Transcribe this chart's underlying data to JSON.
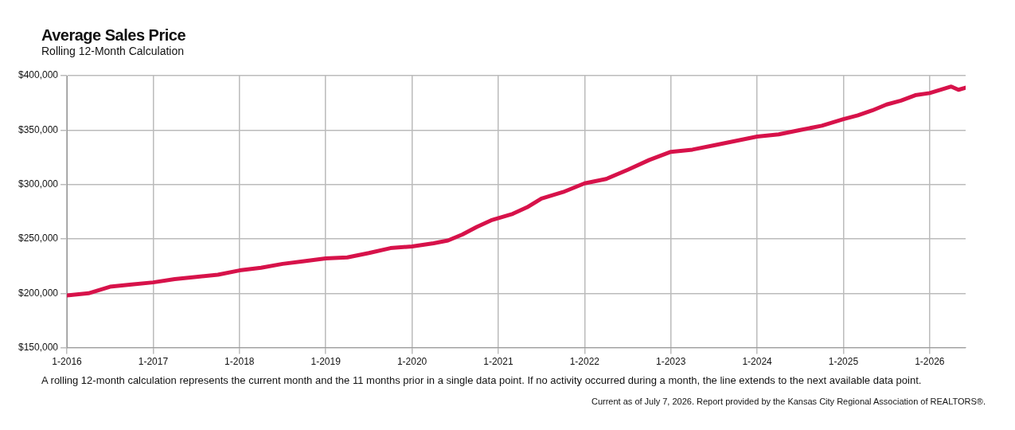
{
  "chart_data": {
    "type": "line",
    "title": "Average Sales Price",
    "subtitle": "Rolling 12-Month Calculation",
    "x": [
      "2016-01",
      "2016-04",
      "2016-07",
      "2016-10",
      "2017-01",
      "2017-04",
      "2017-07",
      "2017-10",
      "2018-01",
      "2018-04",
      "2018-07",
      "2018-10",
      "2019-01",
      "2019-04",
      "2019-07",
      "2019-10",
      "2020-01",
      "2020-04",
      "2020-06",
      "2020-08",
      "2020-10",
      "2020-12",
      "2021-03",
      "2021-05",
      "2021-07",
      "2021-10",
      "2022-01",
      "2022-04",
      "2022-07",
      "2022-10",
      "2023-01",
      "2023-04",
      "2023-07",
      "2023-10",
      "2024-01",
      "2024-04",
      "2024-07",
      "2024-10",
      "2025-01",
      "2025-03",
      "2025-05",
      "2025-07",
      "2025-09",
      "2025-11",
      "2026-01",
      "2026-03",
      "2026-04",
      "2026-05",
      "2026-06"
    ],
    "series": [
      {
        "color": "#d7124a",
        "values": [
          198000,
          200000,
          206000,
          208000,
          210000,
          213000,
          215000,
          217000,
          221000,
          223500,
          227000,
          229500,
          232000,
          233000,
          237000,
          241500,
          243000,
          246000,
          248500,
          254000,
          261000,
          267000,
          273000,
          279000,
          287000,
          293000,
          301000,
          305000,
          313500,
          322500,
          330000,
          332000,
          336000,
          340000,
          344000,
          346000,
          350000,
          354000,
          360000,
          363500,
          368000,
          373500,
          377000,
          382000,
          384000,
          388000,
          390000,
          387000,
          389000
        ]
      }
    ],
    "xlim": [
      "2016-01",
      "2026-06"
    ],
    "xticks": [
      {
        "value": "2016-01",
        "label": "1-2016"
      },
      {
        "value": "2017-01",
        "label": "1-2017"
      },
      {
        "value": "2018-01",
        "label": "1-2018"
      },
      {
        "value": "2019-01",
        "label": "1-2019"
      },
      {
        "value": "2020-01",
        "label": "1-2020"
      },
      {
        "value": "2021-01",
        "label": "1-2021"
      },
      {
        "value": "2022-01",
        "label": "1-2022"
      },
      {
        "value": "2023-01",
        "label": "1-2023"
      },
      {
        "value": "2024-01",
        "label": "1-2024"
      },
      {
        "value": "2025-01",
        "label": "1-2025"
      },
      {
        "value": "2026-01",
        "label": "1-2026"
      }
    ],
    "ylim": [
      150000,
      400000
    ],
    "yticks": [
      {
        "value": 150000,
        "label": "$150,000"
      },
      {
        "value": 200000,
        "label": "$200,000"
      },
      {
        "value": 250000,
        "label": "$250,000"
      },
      {
        "value": 300000,
        "label": "$300,000"
      },
      {
        "value": 350000,
        "label": "$350,000"
      },
      {
        "value": 400000,
        "label": "$400,000"
      }
    ],
    "grid": true,
    "marker": "none",
    "line_style": "solid",
    "annotations": [
      "A rolling 12-month calculation represents the current month and the 11 months prior in a single data point. If no activity occurred during a month, the line extends to the next available data point.",
      "Current as of July 7, 2026. Report provided by the Kansas City Regional Association of REALTORS®."
    ]
  }
}
